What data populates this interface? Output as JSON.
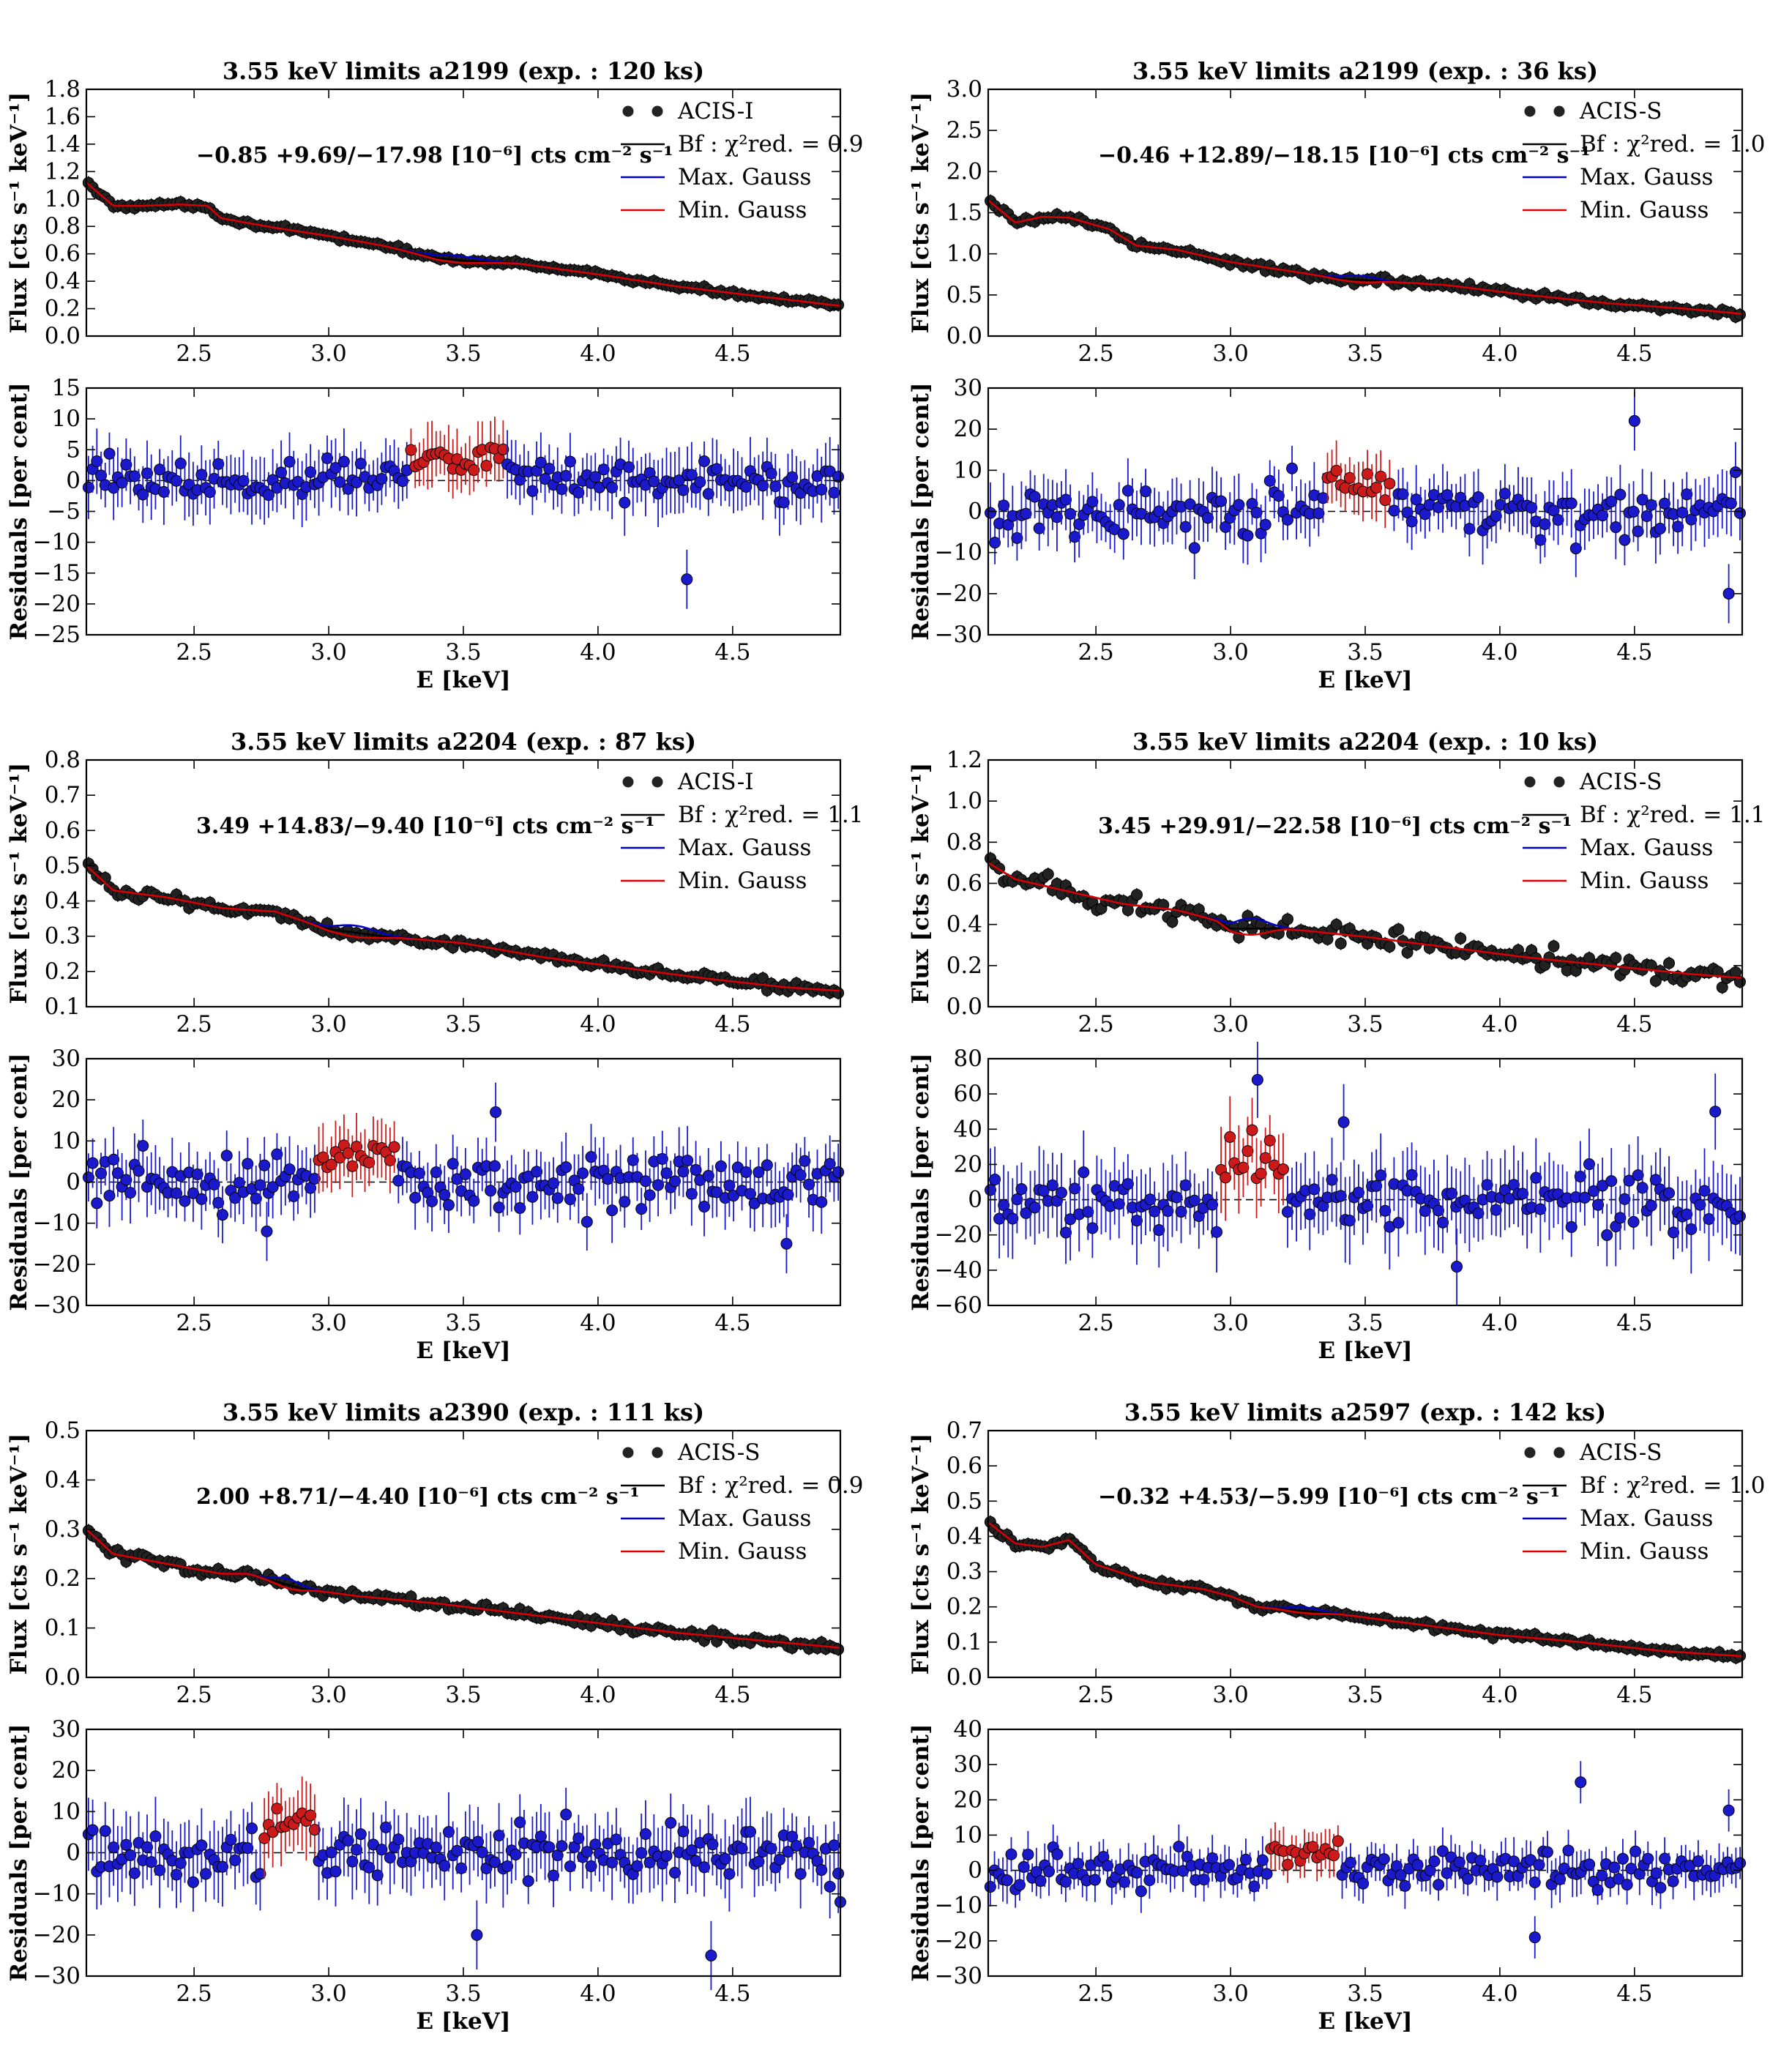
{
  "chart_data": [
    {
      "type": "scatter",
      "title": "3.55 keV limits a2199 (exp. : 120 ks)",
      "detector": "ACIS-I",
      "fit_label": "Bf : χ²red. = 0.9",
      "flux_annotation": "−0.85 +9.69/−17.98 [10⁻⁶] cts cm⁻² s⁻¹",
      "xlabel": "E [keV]",
      "ylabel": "Flux [cts s⁻¹ keV⁻¹]",
      "residual_ylabel": "Residuals [per cent]",
      "xlim": [
        2.1,
        4.9
      ],
      "xticks": [
        "2.5",
        "3.0",
        "3.5",
        "4.0",
        "4.5"
      ],
      "ylim": [
        0.0,
        1.8
      ],
      "yticks": [
        "0.0",
        "0.2",
        "0.4",
        "0.6",
        "0.8",
        "1.0",
        "1.2",
        "1.4",
        "1.6",
        "1.8"
      ],
      "residual_ylim": [
        -25,
        15
      ],
      "residual_yticks": [
        "−25",
        "−20",
        "−15",
        "−10",
        "−5",
        "0",
        "5",
        "10",
        "15"
      ],
      "flux_model": [
        [
          2.1,
          1.12
        ],
        [
          2.2,
          0.95
        ],
        [
          2.3,
          0.95
        ],
        [
          2.45,
          0.96
        ],
        [
          2.55,
          0.95
        ],
        [
          2.6,
          0.86
        ],
        [
          2.8,
          0.79
        ],
        [
          3.0,
          0.73
        ],
        [
          3.2,
          0.66
        ],
        [
          3.4,
          0.57
        ],
        [
          3.5,
          0.55
        ],
        [
          3.7,
          0.53
        ],
        [
          4.0,
          0.45
        ],
        [
          4.3,
          0.36
        ],
        [
          4.6,
          0.29
        ],
        [
          4.9,
          0.22
        ]
      ],
      "gauss_region": [
        3.3,
        3.65
      ],
      "gauss_amplitude": 0.03,
      "flux_scatter": 0.012,
      "residual_scatter": 2.5,
      "residual_excess": 3.5,
      "residual_errbar": 4.0,
      "n_points": 180,
      "outliers": [
        [
          4.33,
          -16
        ]
      ],
      "legend_labels": [
        "ACIS-I",
        "Bf : χ²red. = 0.9",
        "Max. Gauss",
        "Min. Gauss"
      ]
    },
    {
      "type": "scatter",
      "title": "3.55 keV limits a2199 (exp. : 36 ks)",
      "detector": "ACIS-S",
      "fit_label": "Bf : χ²red. = 1.0",
      "flux_annotation": "−0.46 +12.89/−18.15 [10⁻⁶] cts cm⁻² s⁻¹",
      "xlabel": "E [keV]",
      "ylabel": "Flux [cts s⁻¹ keV⁻¹]",
      "residual_ylabel": "Residuals [per cent]",
      "xlim": [
        2.1,
        4.9
      ],
      "xticks": [
        "2.5",
        "3.0",
        "3.5",
        "4.0",
        "4.5"
      ],
      "ylim": [
        0.0,
        3.0
      ],
      "yticks": [
        "0.0",
        "0.5",
        "1.0",
        "1.5",
        "2.0",
        "2.5",
        "3.0"
      ],
      "residual_ylim": [
        -30,
        30
      ],
      "residual_yticks": [
        "−30",
        "−20",
        "−10",
        "0",
        "10",
        "20",
        "30"
      ],
      "flux_model": [
        [
          2.1,
          1.65
        ],
        [
          2.2,
          1.38
        ],
        [
          2.3,
          1.45
        ],
        [
          2.4,
          1.44
        ],
        [
          2.55,
          1.3
        ],
        [
          2.65,
          1.1
        ],
        [
          2.8,
          1.05
        ],
        [
          3.0,
          0.9
        ],
        [
          3.2,
          0.8
        ],
        [
          3.4,
          0.7
        ],
        [
          3.5,
          0.68
        ],
        [
          3.8,
          0.62
        ],
        [
          4.1,
          0.5
        ],
        [
          4.4,
          0.4
        ],
        [
          4.7,
          0.33
        ],
        [
          4.9,
          0.27
        ]
      ],
      "gauss_region": [
        3.35,
        3.6
      ],
      "gauss_amplitude": 0.05,
      "flux_scatter": 0.03,
      "residual_scatter": 5,
      "residual_excess": 6,
      "residual_errbar": 6,
      "n_points": 170,
      "outliers": [
        [
          4.5,
          22
        ],
        [
          4.85,
          -20
        ]
      ],
      "legend_labels": [
        "ACIS-S",
        "Bf : χ²red. = 1.0",
        "Max. Gauss",
        "Min. Gauss"
      ]
    },
    {
      "type": "scatter",
      "title": "3.55 keV limits a2204 (exp. : 87 ks)",
      "detector": "ACIS-I",
      "fit_label": "Bf : χ²red. = 1.1",
      "flux_annotation": "3.49 +14.83/−9.40 [10⁻⁶] cts cm⁻² s⁻¹",
      "xlabel": "E [keV]",
      "ylabel": "Flux [cts s⁻¹ keV⁻¹]",
      "residual_ylabel": "Residuals [per cent]",
      "xlim": [
        2.1,
        4.9
      ],
      "xticks": [
        "2.5",
        "3.0",
        "3.5",
        "4.0",
        "4.5"
      ],
      "ylim": [
        0.1,
        0.8
      ],
      "yticks": [
        "0.1",
        "0.2",
        "0.3",
        "0.4",
        "0.5",
        "0.6",
        "0.7",
        "0.8"
      ],
      "residual_ylim": [
        -30,
        30
      ],
      "residual_yticks": [
        "−30",
        "−20",
        "−10",
        "0",
        "10",
        "20",
        "30"
      ],
      "flux_model": [
        [
          2.1,
          0.5
        ],
        [
          2.2,
          0.43
        ],
        [
          2.4,
          0.41
        ],
        [
          2.6,
          0.38
        ],
        [
          2.8,
          0.37
        ],
        [
          3.0,
          0.32
        ],
        [
          3.2,
          0.3
        ],
        [
          3.5,
          0.28
        ],
        [
          3.8,
          0.24
        ],
        [
          4.1,
          0.21
        ],
        [
          4.4,
          0.18
        ],
        [
          4.7,
          0.155
        ],
        [
          4.9,
          0.145
        ]
      ],
      "gauss_region": [
        2.95,
        3.25
      ],
      "gauss_amplitude": 0.02,
      "flux_scatter": 0.01,
      "residual_scatter": 5,
      "residual_excess": 6,
      "residual_errbar": 6,
      "n_points": 180,
      "outliers": [
        [
          4.7,
          -15
        ],
        [
          3.62,
          17
        ],
        [
          2.77,
          -12
        ]
      ],
      "legend_labels": [
        "ACIS-I",
        "Bf : χ²red. = 1.1",
        "Max. Gauss",
        "Min. Gauss"
      ]
    },
    {
      "type": "scatter",
      "title": "3.55 keV limits a2204 (exp. : 10 ks)",
      "detector": "ACIS-S",
      "fit_label": "Bf : χ²red. = 1.1",
      "flux_annotation": "3.45 +29.91/−22.58 [10⁻⁶] cts cm⁻² s⁻¹",
      "xlabel": "E [keV]",
      "ylabel": "Flux [cts s⁻¹ keV⁻¹]",
      "residual_ylabel": "Residuals [per cent]",
      "xlim": [
        2.1,
        4.9
      ],
      "xticks": [
        "2.5",
        "3.0",
        "3.5",
        "4.0",
        "4.5"
      ],
      "ylim": [
        0.0,
        1.2
      ],
      "yticks": [
        "0.0",
        "0.2",
        "0.4",
        "0.6",
        "0.8",
        "1.0",
        "1.2"
      ],
      "residual_ylim": [
        -60,
        80
      ],
      "residual_yticks": [
        "−60",
        "−40",
        "−20",
        "0",
        "20",
        "40",
        "60",
        "80"
      ],
      "flux_model": [
        [
          2.1,
          0.7
        ],
        [
          2.2,
          0.62
        ],
        [
          2.4,
          0.56
        ],
        [
          2.6,
          0.5
        ],
        [
          2.8,
          0.47
        ],
        [
          2.95,
          0.42
        ],
        [
          3.0,
          0.38
        ],
        [
          3.2,
          0.38
        ],
        [
          3.5,
          0.34
        ],
        [
          3.8,
          0.29
        ],
        [
          4.1,
          0.24
        ],
        [
          4.4,
          0.2
        ],
        [
          4.7,
          0.16
        ],
        [
          4.9,
          0.14
        ]
      ],
      "gauss_region": [
        2.95,
        3.2
      ],
      "gauss_amplitude": 0.05,
      "flux_scatter": 0.04,
      "residual_scatter": 12,
      "residual_excess": 25,
      "residual_errbar": 18,
      "n_points": 170,
      "outliers": [
        [
          3.1,
          68
        ],
        [
          3.42,
          44
        ],
        [
          3.84,
          -38
        ],
        [
          4.8,
          50
        ]
      ],
      "legend_labels": [
        "ACIS-S",
        "Bf : χ²red. = 1.1",
        "Max. Gauss",
        "Min. Gauss"
      ]
    },
    {
      "type": "scatter",
      "title": "3.55 keV limits a2390 (exp. : 111 ks)",
      "detector": "ACIS-S",
      "fit_label": "Bf : χ²red. = 0.9",
      "flux_annotation": "2.00 +8.71/−4.40 [10⁻⁶] cts cm⁻² s⁻¹",
      "xlabel": "E [keV]",
      "ylabel": "Flux [cts s⁻¹ keV⁻¹]",
      "residual_ylabel": "Residuals [per cent]",
      "xlim": [
        2.1,
        4.9
      ],
      "xticks": [
        "2.5",
        "3.0",
        "3.5",
        "4.0",
        "4.5"
      ],
      "ylim": [
        0.0,
        0.5
      ],
      "yticks": [
        "0.0",
        "0.1",
        "0.2",
        "0.3",
        "0.4",
        "0.5"
      ],
      "residual_ylim": [
        -30,
        30
      ],
      "residual_yticks": [
        "−30",
        "−20",
        "−10",
        "0",
        "10",
        "20",
        "30"
      ],
      "flux_model": [
        [
          2.1,
          0.3
        ],
        [
          2.2,
          0.25
        ],
        [
          2.4,
          0.23
        ],
        [
          2.6,
          0.21
        ],
        [
          2.7,
          0.21
        ],
        [
          2.9,
          0.18
        ],
        [
          3.1,
          0.165
        ],
        [
          3.4,
          0.15
        ],
        [
          3.7,
          0.13
        ],
        [
          4.0,
          0.11
        ],
        [
          4.3,
          0.09
        ],
        [
          4.6,
          0.075
        ],
        [
          4.9,
          0.06
        ]
      ],
      "gauss_region": [
        2.75,
        2.95
      ],
      "gauss_amplitude": 0.012,
      "flux_scatter": 0.007,
      "residual_scatter": 5,
      "residual_excess": 6,
      "residual_errbar": 7,
      "n_points": 180,
      "outliers": [
        [
          3.55,
          -20
        ],
        [
          4.42,
          -25
        ],
        [
          4.9,
          -12
        ]
      ],
      "legend_labels": [
        "ACIS-S",
        "Bf : χ²red. = 0.9",
        "Max. Gauss",
        "Min. Gauss"
      ]
    },
    {
      "type": "scatter",
      "title": "3.55 keV limits a2597 (exp. : 142 ks)",
      "detector": "ACIS-S",
      "fit_label": "Bf : χ²red. = 1.0",
      "flux_annotation": "−0.32 +4.53/−5.99 [10⁻⁶] cts cm⁻² s⁻¹",
      "xlabel": "E [keV]",
      "ylabel": "Flux [cts s⁻¹ keV⁻¹]",
      "residual_ylabel": "Residuals [per cent]",
      "xlim": [
        2.1,
        4.9
      ],
      "xticks": [
        "2.5",
        "3.0",
        "3.5",
        "4.0",
        "4.5"
      ],
      "ylim": [
        0.0,
        0.7
      ],
      "yticks": [
        "0.0",
        "0.1",
        "0.2",
        "0.3",
        "0.4",
        "0.5",
        "0.6",
        "0.7"
      ],
      "residual_ylim": [
        -30,
        40
      ],
      "residual_yticks": [
        "−30",
        "−20",
        "−10",
        "0",
        "10",
        "20",
        "30",
        "40"
      ],
      "flux_model": [
        [
          2.1,
          0.44
        ],
        [
          2.2,
          0.38
        ],
        [
          2.3,
          0.37
        ],
        [
          2.4,
          0.39
        ],
        [
          2.5,
          0.32
        ],
        [
          2.7,
          0.27
        ],
        [
          2.9,
          0.25
        ],
        [
          3.0,
          0.23
        ],
        [
          3.1,
          0.2
        ],
        [
          3.4,
          0.18
        ],
        [
          3.7,
          0.15
        ],
        [
          4.0,
          0.12
        ],
        [
          4.3,
          0.1
        ],
        [
          4.6,
          0.075
        ],
        [
          4.9,
          0.06
        ]
      ],
      "gauss_region": [
        3.15,
        3.4
      ],
      "gauss_amplitude": 0.01,
      "flux_scatter": 0.006,
      "residual_scatter": 4,
      "residual_excess": 5,
      "residual_errbar": 5,
      "n_points": 180,
      "outliers": [
        [
          4.3,
          25
        ],
        [
          4.13,
          -19
        ],
        [
          4.85,
          17
        ]
      ],
      "legend_labels": [
        "ACIS-S",
        "Bf : χ²red. = 1.0",
        "Max. Gauss",
        "Min. Gauss"
      ]
    }
  ],
  "colors": {
    "data": "#000000",
    "bestfit": "#000000",
    "max_gauss": "#0000cc",
    "min_gauss": "#dd0000",
    "residual": "#1a1acc",
    "residual_excess": "#cc1a1a"
  }
}
